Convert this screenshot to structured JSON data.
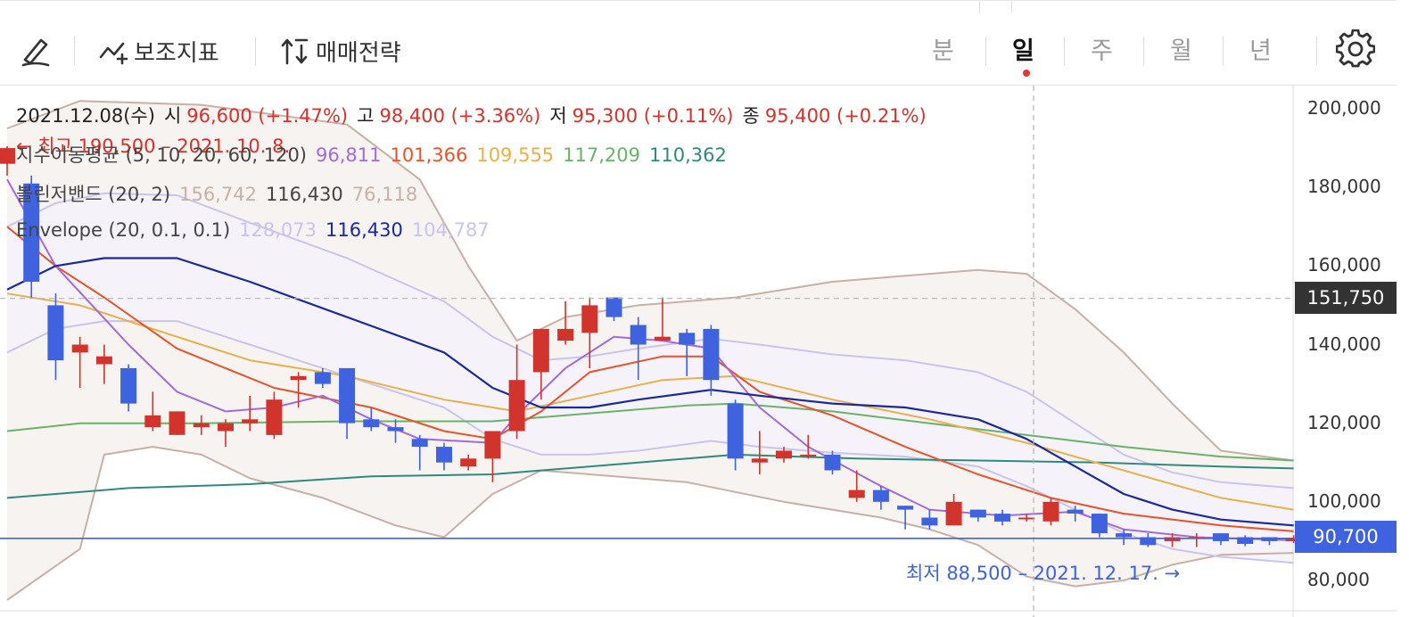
{
  "toolbar": {
    "indicator_label": "보조지표",
    "strategy_label": "매매전략",
    "timeframes": [
      "분",
      "일",
      "주",
      "월",
      "년"
    ],
    "active_timeframe": "일"
  },
  "legend": {
    "ohlc": {
      "date": "2021.12.08(수)",
      "open_label": "시",
      "open": "96,600 (+1.47%)",
      "high_label": "고",
      "high": "98,400 (+3.36%)",
      "low_label": "저",
      "low": "95,300 (+0.11%)",
      "close_label": "종",
      "close": "95,400 (+0.21%)"
    },
    "ema": {
      "name": "지수이동평균 (5, 10, 20, 60, 120)",
      "values": [
        "96,811",
        "101,366",
        "109,555",
        "117,209",
        "110,362"
      ]
    },
    "bollinger": {
      "name": "볼린저밴드 (20, 2)",
      "values": [
        "156,742",
        "116,430",
        "76,118"
      ]
    },
    "envelope": {
      "name": "Envelope (20, 0.1, 0.1)",
      "values": [
        "128,073",
        "116,430",
        "104,787"
      ]
    }
  },
  "annotations": {
    "high": "← 최고 190,500 – 2021. 10. 8.",
    "low": "최저 88,500 – 2021. 12. 17. →"
  },
  "price_tags": {
    "crosshair": "151,750",
    "current": "90,700"
  },
  "colors": {
    "up": "#d0342c",
    "down": "#3f62de",
    "ema5": "#a36bd8",
    "ema10": "#e8532a",
    "ema20": "#e8b04a",
    "ema60": "#6ab26a",
    "ema120": "#2f8a7e",
    "bb": "#c8b0a6",
    "env_mid": "#1a2a9c",
    "env_band": "#c9c4ee"
  },
  "chart_data": {
    "type": "candlestick",
    "y_axis": {
      "ticks": [
        80000,
        100000,
        120000,
        140000,
        160000,
        180000,
        200000
      ],
      "tick_labels": [
        "80,000",
        "100,000",
        "120,000",
        "140,000",
        "160,000",
        "180,000",
        "200,000"
      ],
      "min": 77000,
      "max": 204000,
      "position": "right"
    },
    "crosshair_price": 151750,
    "current_price": 90700,
    "candles": [
      {
        "o": 186000,
        "h": 190500,
        "l": 183000,
        "c": 190000
      },
      {
        "o": 181000,
        "h": 183000,
        "l": 152000,
        "c": 156000
      },
      {
        "o": 150000,
        "h": 153000,
        "l": 131000,
        "c": 136000
      },
      {
        "o": 138000,
        "h": 142000,
        "l": 129000,
        "c": 140000
      },
      {
        "o": 135000,
        "h": 140000,
        "l": 130000,
        "c": 137000
      },
      {
        "o": 134000,
        "h": 135000,
        "l": 123000,
        "c": 125000
      },
      {
        "o": 119000,
        "h": 128000,
        "l": 118000,
        "c": 122000
      },
      {
        "o": 117000,
        "h": 123000,
        "l": 117000,
        "c": 123000
      },
      {
        "o": 119000,
        "h": 122000,
        "l": 117000,
        "c": 120000
      },
      {
        "o": 118000,
        "h": 121000,
        "l": 114000,
        "c": 120000
      },
      {
        "o": 120000,
        "h": 127000,
        "l": 118000,
        "c": 121000
      },
      {
        "o": 117000,
        "h": 128000,
        "l": 116000,
        "c": 126000
      },
      {
        "o": 131000,
        "h": 133000,
        "l": 124000,
        "c": 132000
      },
      {
        "o": 133000,
        "h": 134000,
        "l": 129000,
        "c": 130000
      },
      {
        "o": 134000,
        "h": 134000,
        "l": 116000,
        "c": 120000
      },
      {
        "o": 121000,
        "h": 124000,
        "l": 118000,
        "c": 119000
      },
      {
        "o": 119000,
        "h": 121000,
        "l": 115000,
        "c": 118000
      },
      {
        "o": 116000,
        "h": 117000,
        "l": 108000,
        "c": 114000
      },
      {
        "o": 114000,
        "h": 115000,
        "l": 108000,
        "c": 110000
      },
      {
        "o": 109000,
        "h": 112000,
        "l": 108000,
        "c": 111000
      },
      {
        "o": 111000,
        "h": 118000,
        "l": 105000,
        "c": 118000
      },
      {
        "o": 118000,
        "h": 140000,
        "l": 116000,
        "c": 131000
      },
      {
        "o": 133000,
        "h": 144000,
        "l": 126000,
        "c": 144000
      },
      {
        "o": 141000,
        "h": 151000,
        "l": 140000,
        "c": 144000
      },
      {
        "o": 143000,
        "h": 152000,
        "l": 134000,
        "c": 150000
      },
      {
        "o": 152000,
        "h": 152000,
        "l": 146000,
        "c": 147000
      },
      {
        "o": 145000,
        "h": 147000,
        "l": 131000,
        "c": 140000
      },
      {
        "o": 141000,
        "h": 152000,
        "l": 141000,
        "c": 142000
      },
      {
        "o": 143000,
        "h": 144000,
        "l": 132000,
        "c": 140000
      },
      {
        "o": 144000,
        "h": 145000,
        "l": 127000,
        "c": 131000
      },
      {
        "o": 125000,
        "h": 126000,
        "l": 108000,
        "c": 111000
      },
      {
        "o": 110000,
        "h": 118000,
        "l": 107000,
        "c": 111000
      },
      {
        "o": 111000,
        "h": 114000,
        "l": 110000,
        "c": 113000
      },
      {
        "o": 112000,
        "h": 117000,
        "l": 111000,
        "c": 112000
      },
      {
        "o": 112000,
        "h": 113000,
        "l": 107000,
        "c": 108000
      },
      {
        "o": 101000,
        "h": 108000,
        "l": 100000,
        "c": 103000
      },
      {
        "o": 103000,
        "h": 104000,
        "l": 98000,
        "c": 100000
      },
      {
        "o": 99000,
        "h": 99000,
        "l": 93000,
        "c": 98000
      },
      {
        "o": 96000,
        "h": 98000,
        "l": 93000,
        "c": 94000
      },
      {
        "o": 94000,
        "h": 102000,
        "l": 94000,
        "c": 100000
      },
      {
        "o": 98000,
        "h": 98000,
        "l": 95000,
        "c": 96000
      },
      {
        "o": 97000,
        "h": 98000,
        "l": 94000,
        "c": 95000
      },
      {
        "o": 96000,
        "h": 97000,
        "l": 95000,
        "c": 96000
      },
      {
        "o": 95000,
        "h": 101000,
        "l": 94000,
        "c": 100000
      },
      {
        "o": 98000,
        "h": 99000,
        "l": 95000,
        "c": 97000
      },
      {
        "o": 97000,
        "h": 97000,
        "l": 91000,
        "c": 92000
      },
      {
        "o": 92000,
        "h": 93000,
        "l": 89000,
        "c": 91000
      },
      {
        "o": 91000,
        "h": 92000,
        "l": 88500,
        "c": 89000
      },
      {
        "o": 90000,
        "h": 92000,
        "l": 88500,
        "c": 91000
      },
      {
        "o": 91000,
        "h": 92000,
        "l": 88500,
        "c": 91000
      },
      {
        "o": 92000,
        "h": 92000,
        "l": 89000,
        "c": 90000
      },
      {
        "o": 91000,
        "h": 91500,
        "l": 88700,
        "c": 89300
      },
      {
        "o": 91000,
        "h": 91000,
        "l": 89000,
        "c": 90000
      },
      {
        "o": 90000,
        "h": 91500,
        "l": 89500,
        "c": 90700
      }
    ],
    "lines": {
      "ema5": [
        [
          0,
          182000
        ],
        [
          2,
          160000
        ],
        [
          5,
          140000
        ],
        [
          7,
          128000
        ],
        [
          9,
          123000
        ],
        [
          11,
          124000
        ],
        [
          13,
          127000
        ],
        [
          15,
          121000
        ],
        [
          17,
          116000
        ],
        [
          20,
          115000
        ],
        [
          21,
          122000
        ],
        [
          23,
          134000
        ],
        [
          25,
          142000
        ],
        [
          27,
          141000
        ],
        [
          29,
          139000
        ],
        [
          31,
          124000
        ],
        [
          33,
          114000
        ],
        [
          36,
          104000
        ],
        [
          38,
          98000
        ],
        [
          41,
          96500
        ],
        [
          44,
          97500
        ],
        [
          46,
          93000
        ],
        [
          49,
          91000
        ],
        [
          53,
          90200
        ]
      ],
      "ema10": [
        [
          0,
          170000
        ],
        [
          2,
          160000
        ],
        [
          4,
          152000
        ],
        [
          7,
          139000
        ],
        [
          11,
          129000
        ],
        [
          15,
          124000
        ],
        [
          18,
          118000
        ],
        [
          20,
          116000
        ],
        [
          22,
          123000
        ],
        [
          24,
          133000
        ],
        [
          27,
          137000
        ],
        [
          29,
          137000
        ],
        [
          31,
          128000
        ],
        [
          34,
          122000
        ],
        [
          37,
          114000
        ],
        [
          40,
          107000
        ],
        [
          43,
          101000
        ],
        [
          46,
          97000
        ],
        [
          50,
          94000
        ],
        [
          53,
          92500
        ]
      ],
      "ema20": [
        [
          0,
          153000
        ],
        [
          3,
          150000
        ],
        [
          6,
          144000
        ],
        [
          10,
          136000
        ],
        [
          14,
          132000
        ],
        [
          18,
          126000
        ],
        [
          21,
          123000
        ],
        [
          24,
          127000
        ],
        [
          27,
          131000
        ],
        [
          30,
          132000
        ],
        [
          34,
          126000
        ],
        [
          38,
          121000
        ],
        [
          42,
          115000
        ],
        [
          46,
          108000
        ],
        [
          50,
          101000
        ],
        [
          53,
          98000
        ]
      ],
      "ema60": [
        [
          0,
          118000
        ],
        [
          3,
          120000
        ],
        [
          8,
          120000
        ],
        [
          14,
          120500
        ],
        [
          20,
          120500
        ],
        [
          24,
          122500
        ],
        [
          28,
          124500
        ],
        [
          30,
          125000
        ],
        [
          34,
          123000
        ],
        [
          38,
          120000
        ],
        [
          42,
          117000
        ],
        [
          46,
          114000
        ],
        [
          50,
          111500
        ],
        [
          53,
          110500
        ]
      ],
      "ema120": [
        [
          0,
          101000
        ],
        [
          5,
          103500
        ],
        [
          10,
          104500
        ],
        [
          15,
          106500
        ],
        [
          20,
          107000
        ],
        [
          25,
          109500
        ],
        [
          30,
          112000
        ],
        [
          35,
          111000
        ],
        [
          40,
          110500
        ],
        [
          45,
          110000
        ],
        [
          50,
          109000
        ],
        [
          53,
          108500
        ]
      ],
      "bb_upper": [
        [
          0,
          195000
        ],
        [
          3,
          202000
        ],
        [
          8,
          201000
        ],
        [
          14,
          196000
        ],
        [
          17,
          182000
        ],
        [
          19,
          160000
        ],
        [
          21,
          141000
        ],
        [
          23,
          147000
        ],
        [
          26,
          150000
        ],
        [
          30,
          152000
        ],
        [
          34,
          156000
        ],
        [
          38,
          158000
        ],
        [
          40,
          159000
        ],
        [
          42,
          158000
        ],
        [
          44,
          149000
        ],
        [
          46,
          138000
        ],
        [
          48,
          125000
        ],
        [
          50,
          113000
        ],
        [
          53,
          110500
        ]
      ],
      "bb_lower": [
        [
          0,
          75000
        ],
        [
          3,
          88000
        ],
        [
          4,
          112000
        ],
        [
          6,
          114000
        ],
        [
          8,
          112000
        ],
        [
          10,
          106000
        ],
        [
          13,
          101000
        ],
        [
          16,
          94000
        ],
        [
          18,
          91000
        ],
        [
          20,
          102000
        ],
        [
          22,
          108000
        ],
        [
          24,
          107000
        ],
        [
          28,
          105000
        ],
        [
          32,
          100000
        ],
        [
          36,
          96000
        ],
        [
          38,
          93000
        ],
        [
          40,
          89000
        ],
        [
          42,
          81000
        ],
        [
          44,
          78500
        ],
        [
          46,
          80000
        ],
        [
          48,
          84000
        ],
        [
          50,
          86500
        ],
        [
          53,
          87000
        ]
      ],
      "env_mid": [
        [
          0,
          154000
        ],
        [
          2,
          160000
        ],
        [
          4,
          162000
        ],
        [
          7,
          162000
        ],
        [
          10,
          156000
        ],
        [
          14,
          147000
        ],
        [
          18,
          138000
        ],
        [
          20,
          129000
        ],
        [
          22,
          124000
        ],
        [
          24,
          124000
        ],
        [
          26,
          126000
        ],
        [
          29,
          128500
        ],
        [
          31,
          127000
        ],
        [
          34,
          125000
        ],
        [
          37,
          124000
        ],
        [
          40,
          121000
        ],
        [
          42,
          116000
        ],
        [
          44,
          109000
        ],
        [
          46,
          102000
        ],
        [
          48,
          98000
        ],
        [
          50,
          95500
        ],
        [
          53,
          94000
        ]
      ],
      "env_upper": [
        [
          0,
          170000
        ],
        [
          2,
          176000
        ],
        [
          4,
          178500
        ],
        [
          7,
          178000
        ],
        [
          10,
          171000
        ],
        [
          14,
          162000
        ],
        [
          18,
          151000
        ],
        [
          20,
          142000
        ],
        [
          22,
          136000
        ],
        [
          24,
          137000
        ],
        [
          26,
          139000
        ],
        [
          29,
          141500
        ],
        [
          31,
          140000
        ],
        [
          34,
          137500
        ],
        [
          37,
          136000
        ],
        [
          40,
          133000
        ],
        [
          42,
          128000
        ],
        [
          44,
          120000
        ],
        [
          46,
          112000
        ],
        [
          48,
          107500
        ],
        [
          50,
          105000
        ],
        [
          53,
          103500
        ]
      ],
      "env_lower": [
        [
          0,
          138000
        ],
        [
          2,
          144000
        ],
        [
          4,
          146000
        ],
        [
          7,
          146000
        ],
        [
          10,
          140000
        ],
        [
          14,
          132000
        ],
        [
          18,
          124000
        ],
        [
          20,
          116000
        ],
        [
          22,
          112000
        ],
        [
          24,
          112000
        ],
        [
          26,
          113000
        ],
        [
          29,
          115500
        ],
        [
          31,
          114000
        ],
        [
          34,
          112500
        ],
        [
          37,
          111500
        ],
        [
          40,
          109000
        ],
        [
          42,
          104000
        ],
        [
          44,
          98000
        ],
        [
          46,
          92000
        ],
        [
          48,
          88000
        ],
        [
          50,
          86000
        ],
        [
          53,
          84500
        ]
      ]
    }
  }
}
